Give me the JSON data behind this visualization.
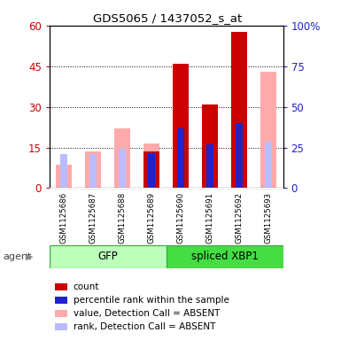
{
  "title": "GDS5065 / 1437052_s_at",
  "samples": [
    "GSM1125686",
    "GSM1125687",
    "GSM1125688",
    "GSM1125689",
    "GSM1125690",
    "GSM1125691",
    "GSM1125692",
    "GSM1125693"
  ],
  "count_values": [
    0,
    0,
    0,
    13.5,
    46,
    31,
    58,
    0
  ],
  "absent_value_values": [
    8.5,
    13.5,
    22,
    16.5,
    0,
    0,
    0,
    43
  ],
  "absent_rank_values": [
    12.5,
    12.5,
    14.5,
    0,
    0,
    16,
    25,
    17
  ],
  "blue_top_values": [
    0,
    0,
    0,
    13.0,
    22,
    16,
    24,
    0
  ],
  "ylim_left": [
    0,
    60
  ],
  "ylim_right": [
    0,
    100
  ],
  "yticks_left": [
    0,
    15,
    30,
    45,
    60
  ],
  "yticks_right": [
    0,
    25,
    50,
    75,
    100
  ],
  "ytick_labels_left": [
    "0",
    "15",
    "30",
    "45",
    "60"
  ],
  "ytick_labels_right": [
    "0",
    "25",
    "50",
    "75",
    "100%"
  ],
  "bar_width": 0.55,
  "color_count": "#cc0000",
  "color_rank_blue": "#2222cc",
  "color_absent_value": "#ffaaaa",
  "color_absent_rank": "#bbbbff",
  "gfp_light": "#ccffcc",
  "gfp_dark": "#44dd44",
  "xbp1_light": "#88ee88",
  "xbp1_dark": "#33cc33",
  "legend_items": [
    {
      "color": "#cc0000",
      "label": "count"
    },
    {
      "color": "#2222cc",
      "label": "percentile rank within the sample"
    },
    {
      "color": "#ffaaaa",
      "label": "value, Detection Call = ABSENT"
    },
    {
      "color": "#bbbbff",
      "label": "rank, Detection Call = ABSENT"
    }
  ],
  "bg_color": "#ffffff",
  "tick_color_left": "#cc0000",
  "tick_color_right": "#2222cc"
}
